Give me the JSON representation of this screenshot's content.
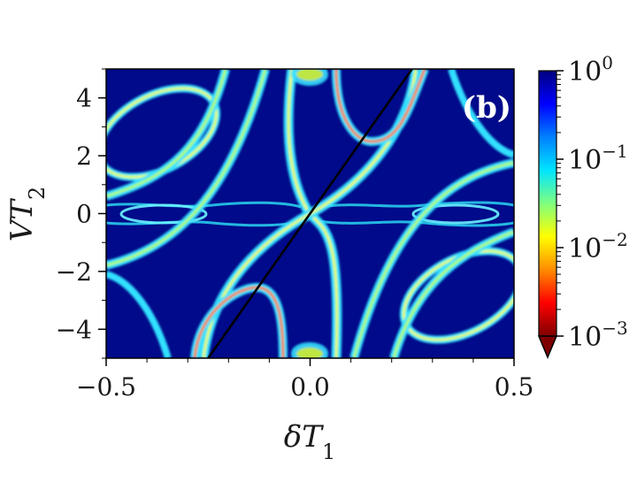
{
  "chart_data": {
    "type": "heatmap",
    "panel_label": "(b)",
    "xlabel": "δT₁",
    "ylabel": "VT₂",
    "xlim": [
      -0.5,
      0.5
    ],
    "ylim": [
      -5,
      5
    ],
    "x_ticks": [
      {
        "value": -0.5,
        "label": "−0.5"
      },
      {
        "value": 0.0,
        "label": "0.0"
      },
      {
        "value": 0.5,
        "label": "0.5"
      }
    ],
    "y_ticks": [
      {
        "value": 4,
        "label": "4"
      },
      {
        "value": 2,
        "label": "2"
      },
      {
        "value": 0,
        "label": "0"
      },
      {
        "value": -2,
        "label": "−2"
      },
      {
        "value": -4,
        "label": "−4"
      }
    ],
    "colorbar": {
      "scale": "log",
      "range": [
        0.001,
        1
      ],
      "extend": "min",
      "colormap": "jet_r",
      "colors_low_to_high": [
        "#7f0000",
        "#ff0000",
        "#ff8c00",
        "#ffff00",
        "#7fff7f",
        "#00e5ff",
        "#0080ff",
        "#0000ff",
        "#00007f"
      ],
      "ticks": [
        {
          "value": 1,
          "base": "10",
          "exp": "0"
        },
        {
          "value": 0.1,
          "base": "10",
          "exp": "−1"
        },
        {
          "value": 0.01,
          "base": "10",
          "exp": "−2"
        },
        {
          "value": 0.001,
          "base": "10",
          "exp": "−3"
        }
      ]
    },
    "overlay_line": {
      "color": "#000000",
      "points": [
        [
          -0.25,
          -5
        ],
        [
          0.25,
          5
        ]
      ]
    },
    "background_color": "#000a8a"
  }
}
